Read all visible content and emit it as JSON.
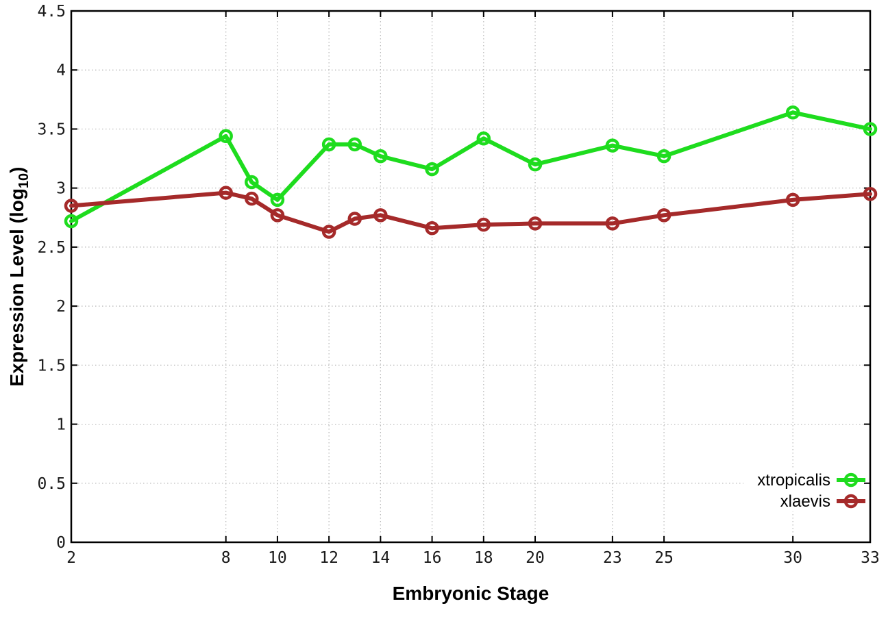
{
  "chart_data": {
    "type": "line",
    "title": "",
    "xlabel": "Embryonic Stage",
    "ylabel": "Expression Level (log10)",
    "ylabel_parts": {
      "prefix": "Expression Level (log",
      "sub": "10",
      "suffix": ")"
    },
    "x": [
      2,
      8,
      9,
      10,
      12,
      13,
      14,
      16,
      18,
      20,
      23,
      25,
      30,
      33
    ],
    "series": [
      {
        "name": "xtropicalis",
        "color": "#1edc1e",
        "values": [
          2.72,
          3.44,
          3.05,
          2.9,
          3.37,
          3.37,
          3.27,
          3.16,
          3.42,
          3.2,
          3.36,
          3.27,
          3.64,
          3.5
        ]
      },
      {
        "name": "xlaevis",
        "color": "#a52a2a",
        "values": [
          2.85,
          2.96,
          2.91,
          2.77,
          2.63,
          2.74,
          2.77,
          2.66,
          2.69,
          2.7,
          2.7,
          2.77,
          2.9,
          2.95
        ]
      }
    ],
    "xlim": [
      2,
      33
    ],
    "ylim": [
      0,
      4.5
    ],
    "xticks": [
      2,
      8,
      10,
      12,
      14,
      16,
      18,
      20,
      23,
      25,
      30,
      33
    ],
    "yticks": [
      0,
      0.5,
      1,
      1.5,
      2,
      2.5,
      3,
      3.5,
      4,
      4.5
    ],
    "grid": true,
    "legend_position": "bottom-right",
    "grid_color": "#b5b5b5",
    "border_color": "#000000"
  }
}
